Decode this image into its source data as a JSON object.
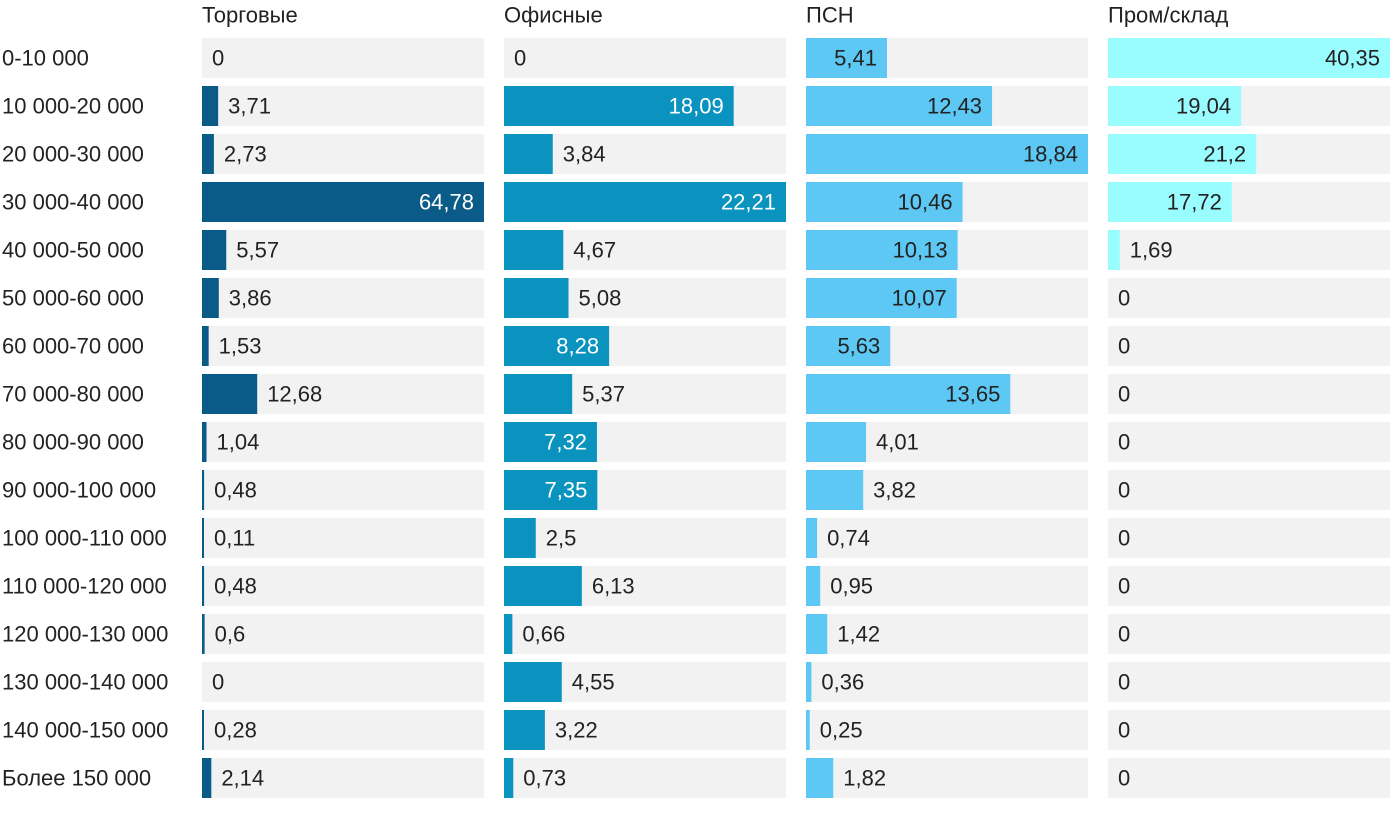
{
  "chart_data": {
    "type": "bar",
    "orientation": "horizontal",
    "layout": "small-multiples",
    "categories": [
      "0-10 000",
      "10 000-20 000",
      "20 000-30 000",
      "30 000-40 000",
      "40 000-50 000",
      "50 000-60 000",
      "60 000-70 000",
      "70 000-80 000",
      "80 000-90 000",
      "90 000-100 000",
      "100 000-110 000",
      "110 000-120 000",
      "120 000-130 000",
      "130 000-140 000",
      "140 000-150 000",
      "Более 150 000"
    ],
    "value_labels": {
      "Торговые": [
        "0",
        "3,71",
        "2,73",
        "64,78",
        "5,57",
        "3,86",
        "1,53",
        "12,68",
        "1,04",
        "0,48",
        "0,11",
        "0,48",
        "0,6",
        "0",
        "0,28",
        "2,14"
      ],
      "Офисные": [
        "0",
        "18,09",
        "3,84",
        "22,21",
        "4,67",
        "5,08",
        "8,28",
        "5,37",
        "7,32",
        "7,35",
        "2,5",
        "6,13",
        "0,66",
        "4,55",
        "3,22",
        "0,73"
      ],
      "ПСН": [
        "5,41",
        "12,43",
        "18,84",
        "10,46",
        "10,13",
        "10,07",
        "5,63",
        "13,65",
        "4,01",
        "3,82",
        "0,74",
        "0,95",
        "1,42",
        "0,36",
        "0,25",
        "1,82"
      ],
      "Пром/склад": [
        "40,35",
        "19,04",
        "21,2",
        "17,72",
        "1,69",
        "0",
        "0",
        "0",
        "0",
        "0",
        "0",
        "0",
        "0",
        "0",
        "0",
        "0"
      ]
    },
    "series": [
      {
        "name": "Торговые",
        "color": "#0a5b87",
        "xlim": [
          0,
          64.78
        ],
        "values": [
          0,
          3.71,
          2.73,
          64.78,
          5.57,
          3.86,
          1.53,
          12.68,
          1.04,
          0.48,
          0.11,
          0.48,
          0.6,
          0,
          0.28,
          2.14
        ]
      },
      {
        "name": "Офисные",
        "color": "#0a93be",
        "xlim": [
          0,
          22.21
        ],
        "values": [
          0,
          18.09,
          3.84,
          22.21,
          4.67,
          5.08,
          8.28,
          5.37,
          7.32,
          7.35,
          2.5,
          6.13,
          0.66,
          4.55,
          3.22,
          0.73
        ]
      },
      {
        "name": "ПСН",
        "color": "#5ec8f4",
        "xlim": [
          0,
          18.84
        ],
        "values": [
          5.41,
          12.43,
          18.84,
          10.46,
          10.13,
          10.07,
          5.63,
          13.65,
          4.01,
          3.82,
          0.74,
          0.95,
          1.42,
          0.36,
          0.25,
          1.82
        ]
      },
      {
        "name": "Пром/склад",
        "color": "#99fcff",
        "xlim": [
          0,
          40.35
        ],
        "values": [
          40.35,
          19.04,
          21.2,
          17.72,
          1.69,
          0,
          0,
          0,
          0,
          0,
          0,
          0,
          0,
          0,
          0,
          0
        ]
      }
    ],
    "colors": {
      "track": "#f2f2f2",
      "label_dark": "#222222",
      "label_light": "#ffffff"
    }
  }
}
